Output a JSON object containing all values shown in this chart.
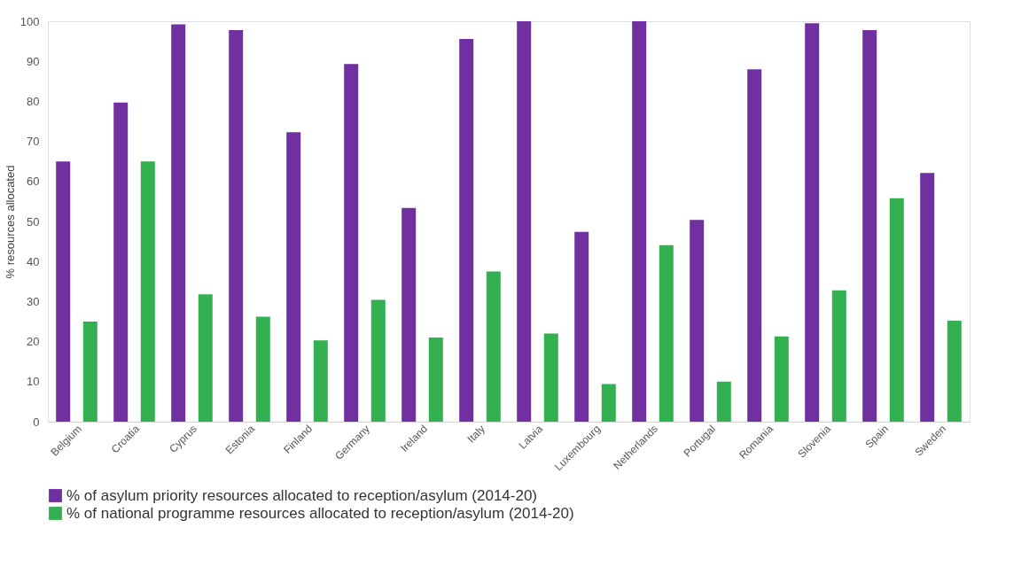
{
  "chart_data": {
    "type": "bar",
    "ylabel": "% resources allocated",
    "categories": [
      "Belgium",
      "Croatia",
      "Cyprus",
      "Estonia",
      "Finland",
      "Germany",
      "Ireland",
      "Italy",
      "Latvia",
      "Luxembourg",
      "Netherlands",
      "Portugal",
      "Romania",
      "Slovenia",
      "Spain",
      "Sweden"
    ],
    "series": [
      {
        "name": "% of asylum priority resources allocated to reception/asylum (2014-20)",
        "color": "#7030a0",
        "values": [
          65,
          79.7,
          99.2,
          97.8,
          72.3,
          89.3,
          53.4,
          95.6,
          100,
          47.4,
          100,
          50.4,
          88,
          99.5,
          97.8,
          62.1
        ]
      },
      {
        "name": "% of national programme resources allocated to reception/asylum (2014-20)",
        "color": "#33b050",
        "values": [
          25,
          65,
          31.8,
          26.2,
          20.3,
          30.4,
          21,
          37.5,
          22,
          9.4,
          44.1,
          10,
          21.3,
          32.8,
          55.8,
          25.2
        ]
      }
    ],
    "ylim": [
      0,
      100
    ],
    "yticks": [
      0,
      10,
      20,
      30,
      40,
      50,
      60,
      70,
      80,
      90,
      100
    ],
    "grid": false,
    "legend": "bottom"
  }
}
